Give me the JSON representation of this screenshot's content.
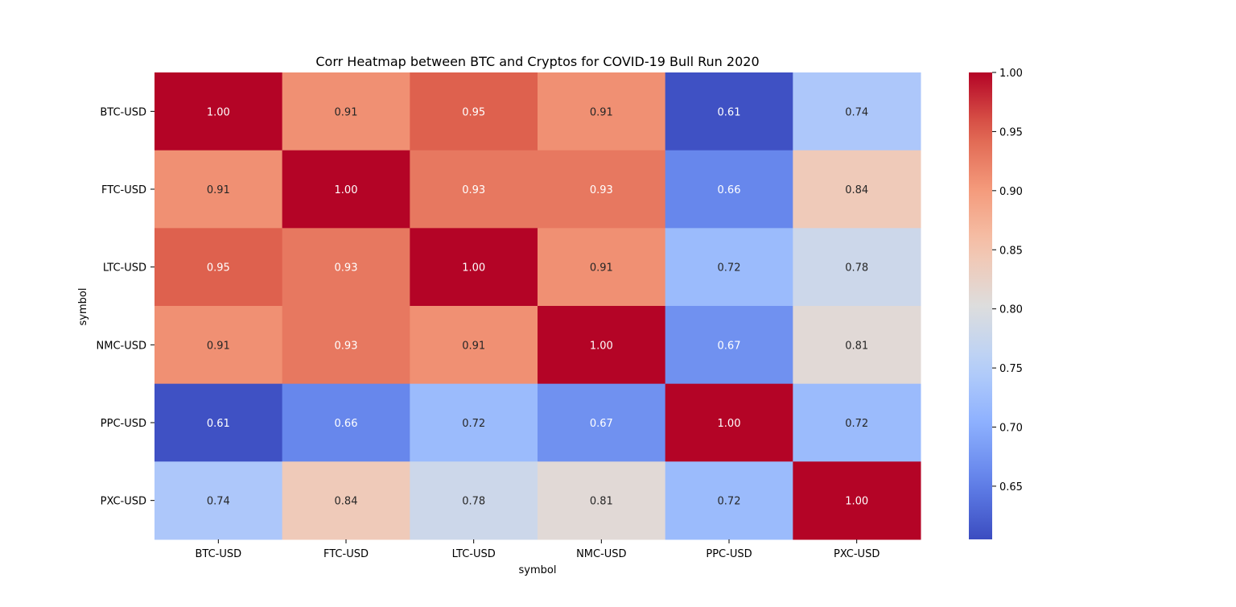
{
  "chart_data": {
    "type": "heatmap",
    "title": "Corr Heatmap between BTC and Cryptos for COVID-19 Bull Run 2020",
    "xlabel": "symbol",
    "ylabel": "symbol",
    "x_categories": [
      "BTC-USD",
      "FTC-USD",
      "LTC-USD",
      "NMC-USD",
      "PPC-USD",
      "PXC-USD"
    ],
    "y_categories": [
      "BTC-USD",
      "FTC-USD",
      "LTC-USD",
      "NMC-USD",
      "PPC-USD",
      "PXC-USD"
    ],
    "values": [
      [
        1.0,
        0.91,
        0.95,
        0.91,
        0.61,
        0.74
      ],
      [
        0.91,
        1.0,
        0.93,
        0.93,
        0.66,
        0.84
      ],
      [
        0.95,
        0.93,
        1.0,
        0.91,
        0.72,
        0.78
      ],
      [
        0.91,
        0.93,
        0.91,
        1.0,
        0.67,
        0.81
      ],
      [
        0.61,
        0.66,
        0.72,
        0.67,
        1.0,
        0.72
      ],
      [
        0.74,
        0.84,
        0.78,
        0.81,
        0.72,
        1.0
      ]
    ],
    "value_format": "0.00",
    "colormap": "coolwarm",
    "colorbar": {
      "range": [
        0.605,
        1.0
      ],
      "ticks": [
        "0.65",
        "0.70",
        "0.75",
        "0.80",
        "0.85",
        "0.90",
        "0.95",
        "1.00"
      ]
    },
    "grid": false
  }
}
